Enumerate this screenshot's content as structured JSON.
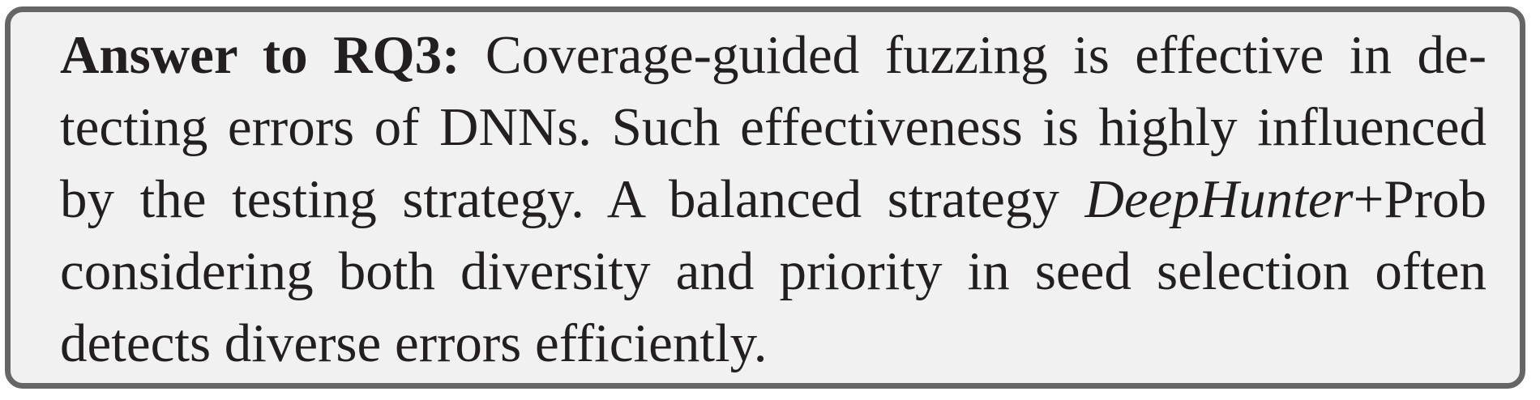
{
  "answer": {
    "label": "Answer to RQ3:",
    "line1": "Coverage-guided fuzzing is effective in de-",
    "line2": "tecting errors of DNNs. Such effectiveness is highly influenced",
    "line3a": "by the testing strategy. A balanced strategy ",
    "line3_italic": "DeepHunter",
    "line3b": "+Prob",
    "line4": "considering both diversity and priority in seed selection often",
    "line5": "detects diverse errors efficiently."
  }
}
